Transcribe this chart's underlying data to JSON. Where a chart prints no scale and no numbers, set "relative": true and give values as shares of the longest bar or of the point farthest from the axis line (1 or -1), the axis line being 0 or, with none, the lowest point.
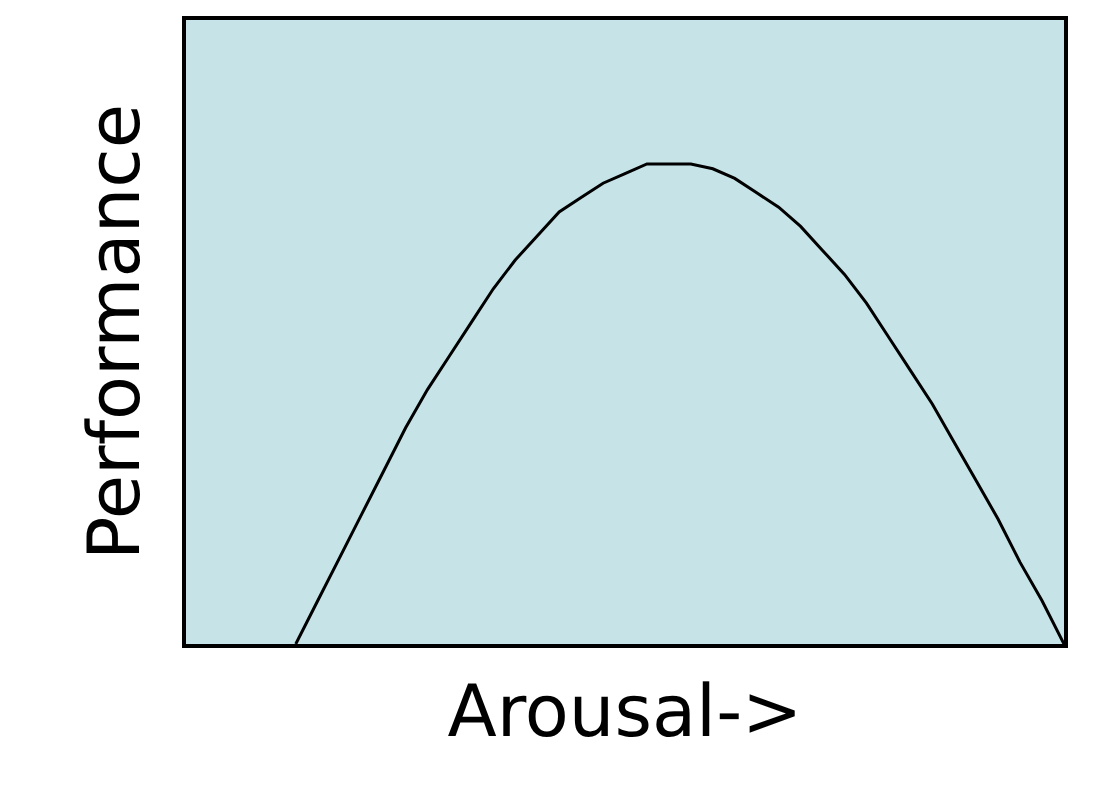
{
  "chart_data": {
    "type": "line",
    "relative": true,
    "xlabel": "Arousal->",
    "ylabel": "Performance",
    "grid": false,
    "marker": "none",
    "line_style": "solid",
    "categories": [
      null,
      null,
      null,
      null,
      null,
      null,
      null,
      null,
      null,
      null,
      null,
      null,
      null,
      null,
      null,
      null,
      null,
      null,
      null,
      null,
      null,
      null,
      null,
      null,
      null,
      null,
      null,
      null,
      null,
      null,
      null,
      null,
      null,
      null,
      null,
      null,
      null,
      null,
      null,
      null,
      null
    ],
    "series": [
      {
        "color": "#000000",
        "values": [
          null,
          null,
          null,
          null,
          null,
          0,
          0.09,
          0.18,
          0.27,
          0.36,
          0.45,
          0.53,
          0.6,
          0.67,
          0.74,
          0.8,
          0.85,
          0.9,
          0.93,
          0.96,
          0.98,
          1.0,
          1.0,
          1.0,
          0.99,
          0.97,
          0.94,
          0.91,
          0.87,
          0.82,
          0.77,
          0.71,
          0.64,
          0.57,
          0.5,
          0.42,
          0.34,
          0.26,
          0.17,
          0.09,
          0
        ]
      }
    ]
  }
}
